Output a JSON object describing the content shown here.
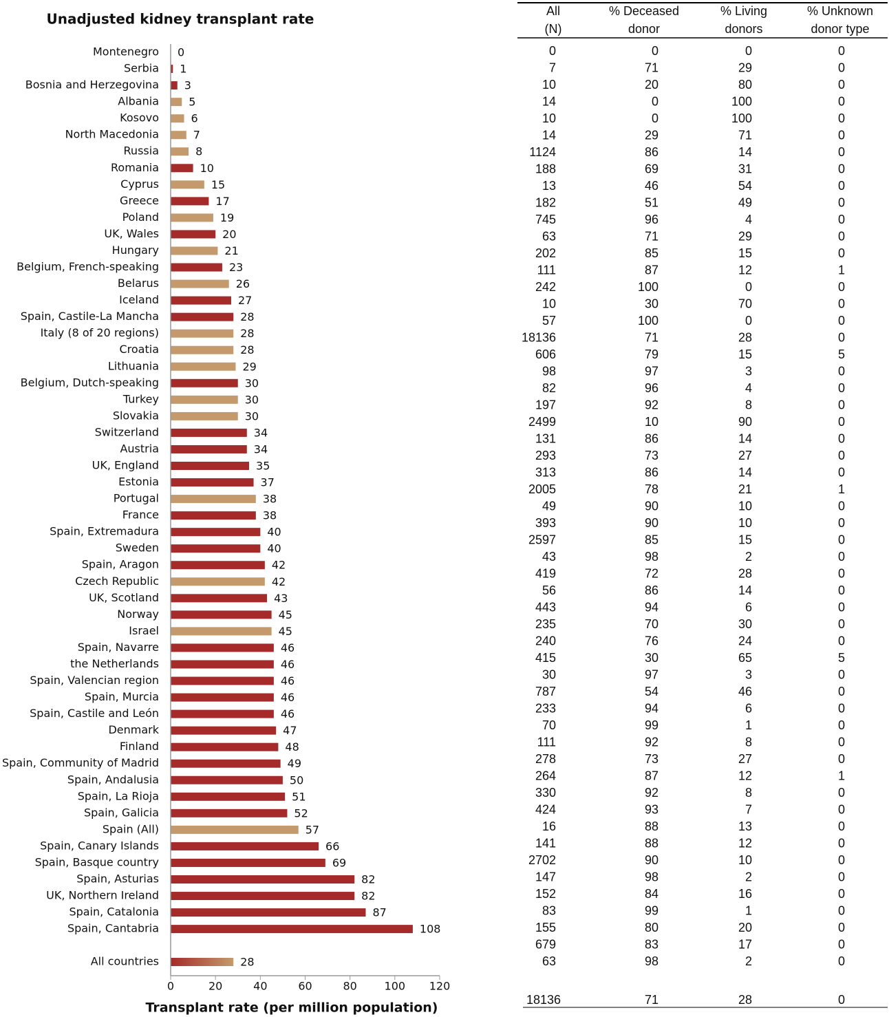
{
  "chart_data": {
    "type": "bar",
    "orientation": "horizontal",
    "title": "Unadjusted kidney transplant rate",
    "x_label": "Transplant rate (per million population)",
    "categories": [
      "Montenegro",
      "Serbia",
      "Bosnia and Herzegovina",
      "Albania",
      "Kosovo",
      "North Macedonia",
      "Russia",
      "Romania",
      "Cyprus",
      "Greece",
      "Poland",
      "UK, Wales",
      "Hungary",
      "Belgium, French-speaking",
      "Belarus",
      "Iceland",
      "Spain, Castile-La Mancha",
      "Italy (8 of 20 regions)",
      "Croatia",
      "Lithuania",
      "Belgium, Dutch-speaking",
      "Turkey",
      "Slovakia",
      "Switzerland",
      "Austria",
      "UK, England",
      "Estonia",
      "Portugal",
      "France",
      "Spain, Extremadura",
      "Sweden",
      "Spain, Aragon",
      "Czech Republic",
      "UK, Scotland",
      "Norway",
      "Israel",
      "Spain, Navarre",
      "the Netherlands",
      "Spain, Valencian region",
      "Spain, Murcia",
      "Spain, Castile and León",
      "Denmark",
      "Finland",
      "Spain, Community of Madrid",
      "Spain, Andalusia",
      "Spain, La Rioja",
      "Spain, Galicia",
      "Spain (All)",
      "Spain, Canary Islands",
      "Spain, Basque country",
      "Spain, Asturias",
      "UK, Northern Ireland",
      "Spain, Catalonia",
      "Spain, Cantabria",
      "All countries"
    ],
    "values": [
      0,
      1,
      3,
      5,
      6,
      7,
      8,
      10,
      15,
      17,
      19,
      20,
      21,
      23,
      26,
      27,
      28,
      28,
      28,
      29,
      30,
      30,
      30,
      34,
      34,
      35,
      37,
      38,
      38,
      40,
      40,
      42,
      42,
      43,
      45,
      45,
      46,
      46,
      46,
      46,
      46,
      47,
      48,
      49,
      50,
      51,
      52,
      57,
      66,
      69,
      82,
      82,
      87,
      108,
      28
    ],
    "colors": [
      "#a52a2a",
      "#a52a2a",
      "#a52a2a",
      "#c49a6c",
      "#c49a6c",
      "#c49a6c",
      "#c49a6c",
      "#a52a2a",
      "#c49a6c",
      "#a52a2a",
      "#c49a6c",
      "#a52a2a",
      "#c49a6c",
      "#a52a2a",
      "#c49a6c",
      "#a52a2a",
      "#a52a2a",
      "#c49a6c",
      "#c49a6c",
      "#c49a6c",
      "#a52a2a",
      "#c49a6c",
      "#c49a6c",
      "#a52a2a",
      "#a52a2a",
      "#a52a2a",
      "#a52a2a",
      "#c49a6c",
      "#a52a2a",
      "#a52a2a",
      "#a52a2a",
      "#a52a2a",
      "#c49a6c",
      "#a52a2a",
      "#a52a2a",
      "#c49a6c",
      "#a52a2a",
      "#a52a2a",
      "#a52a2a",
      "#a52a2a",
      "#a52a2a",
      "#a52a2a",
      "#a52a2a",
      "#a52a2a",
      "#a52a2a",
      "#a52a2a",
      "#a52a2a",
      "#c49a6c",
      "#a52a2a",
      "#a52a2a",
      "#a52a2a",
      "#a52a2a",
      "#a52a2a",
      "#a52a2a",
      [
        "#a52a2a",
        "#c49a6c"
      ]
    ],
    "xlim": [
      0,
      120
    ],
    "xticks": [
      0,
      20,
      40,
      60,
      80,
      100,
      120
    ]
  },
  "table": {
    "headers": [
      [
        "All",
        "(N)"
      ],
      [
        "% Deceased",
        "donor"
      ],
      [
        "% Living",
        "donors"
      ],
      [
        "% Unknown",
        "donor type"
      ]
    ],
    "rows": [
      [
        0,
        0,
        0,
        0
      ],
      [
        7,
        71,
        29,
        0
      ],
      [
        10,
        20,
        80,
        0
      ],
      [
        14,
        0,
        100,
        0
      ],
      [
        10,
        0,
        100,
        0
      ],
      [
        14,
        29,
        71,
        0
      ],
      [
        1124,
        86,
        14,
        0
      ],
      [
        188,
        69,
        31,
        0
      ],
      [
        13,
        46,
        54,
        0
      ],
      [
        182,
        51,
        49,
        0
      ],
      [
        745,
        96,
        4,
        0
      ],
      [
        63,
        71,
        29,
        0
      ],
      [
        202,
        85,
        15,
        0
      ],
      [
        111,
        87,
        12,
        1
      ],
      [
        242,
        100,
        0,
        0
      ],
      [
        10,
        30,
        70,
        0
      ],
      [
        57,
        100,
        0,
        0
      ],
      [
        18136,
        71,
        28,
        0
      ],
      [
        606,
        79,
        15,
        5
      ],
      [
        98,
        97,
        3,
        0
      ],
      [
        82,
        96,
        4,
        0
      ],
      [
        197,
        92,
        8,
        0
      ],
      [
        2499,
        10,
        90,
        0
      ],
      [
        131,
        86,
        14,
        0
      ],
      [
        293,
        73,
        27,
        0
      ],
      [
        313,
        86,
        14,
        0
      ],
      [
        2005,
        78,
        21,
        1
      ],
      [
        49,
        90,
        10,
        0
      ],
      [
        393,
        90,
        10,
        0
      ],
      [
        2597,
        85,
        15,
        0
      ],
      [
        43,
        98,
        2,
        0
      ],
      [
        419,
        72,
        28,
        0
      ],
      [
        56,
        86,
        14,
        0
      ],
      [
        443,
        94,
        6,
        0
      ],
      [
        235,
        70,
        30,
        0
      ],
      [
        240,
        76,
        24,
        0
      ],
      [
        415,
        30,
        65,
        5
      ],
      [
        30,
        97,
        3,
        0
      ],
      [
        787,
        54,
        46,
        0
      ],
      [
        233,
        94,
        6,
        0
      ],
      [
        70,
        99,
        1,
        0
      ],
      [
        111,
        92,
        8,
        0
      ],
      [
        278,
        73,
        27,
        0
      ],
      [
        264,
        87,
        12,
        1
      ],
      [
        330,
        92,
        8,
        0
      ],
      [
        424,
        93,
        7,
        0
      ],
      [
        16,
        88,
        13,
        0
      ],
      [
        141,
        88,
        12,
        0
      ],
      [
        2702,
        90,
        10,
        0
      ],
      [
        147,
        98,
        2,
        0
      ],
      [
        152,
        84,
        16,
        0
      ],
      [
        83,
        99,
        1,
        0
      ],
      [
        155,
        80,
        20,
        0
      ],
      [
        679,
        83,
        17,
        0
      ],
      [
        63,
        98,
        2,
        0
      ]
    ],
    "total": [
      18136,
      71,
      28,
      0
    ]
  }
}
